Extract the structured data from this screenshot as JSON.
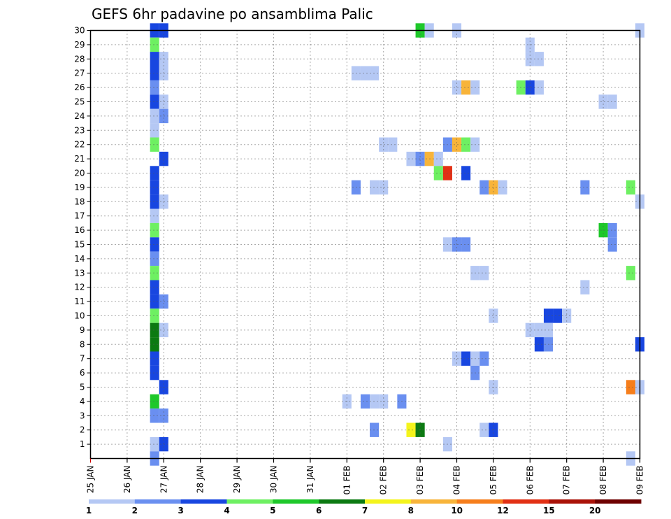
{
  "chart_data": {
    "type": "heatmap",
    "title": "GEFS 6hr padavine po ansamblima Palic",
    "x_tick_labels": [
      "25 JAN",
      "26 JAN",
      "27 JAN",
      "28 JAN",
      "29 JAN",
      "30 JAN",
      "31 JAN",
      "01 FEB",
      "02 FEB",
      "03 FEB",
      "04 FEB",
      "05 FEB",
      "06 FEB",
      "07 FEB",
      "08 FEB",
      "09 FEB"
    ],
    "y_tick_labels": [
      "1",
      "2",
      "3",
      "4",
      "5",
      "6",
      "7",
      "8",
      "9",
      "10",
      "11",
      "12",
      "13",
      "14",
      "15",
      "16",
      "17",
      "18",
      "19",
      "20",
      "21",
      "22",
      "23",
      "24",
      "25",
      "26",
      "27",
      "28",
      "29",
      "30"
    ],
    "x_range_days": [
      0,
      15
    ],
    "y_range_members": [
      0,
      30
    ],
    "grid": "dotted",
    "colorbar": {
      "placement": "bottom",
      "labels": [
        "1",
        "2",
        "3",
        "4",
        "5",
        "6",
        "7",
        "8",
        "10",
        "12",
        "15",
        "20"
      ],
      "colors": [
        "#b5c8f4",
        "#6a8ff0",
        "#1846e0",
        "#6ef062",
        "#1ec82a",
        "#0c7a12",
        "#f4f41c",
        "#f8b43a",
        "#f67e1c",
        "#e23014",
        "#aa1208",
        "#6e0000"
      ]
    },
    "cell_width_days": 0.25,
    "cells": [
      {
        "day": 1.75,
        "member": 30,
        "level": 3
      },
      {
        "day": 2.0,
        "member": 30,
        "level": 3
      },
      {
        "day": 1.75,
        "member": 29,
        "level": 4
      },
      {
        "day": 1.75,
        "member": 28,
        "level": 3
      },
      {
        "day": 2.0,
        "member": 28,
        "level": 1
      },
      {
        "day": 1.75,
        "member": 27,
        "level": 3
      },
      {
        "day": 2.0,
        "member": 27,
        "level": 1
      },
      {
        "day": 1.75,
        "member": 26,
        "level": 2
      },
      {
        "day": 1.75,
        "member": 25,
        "level": 3
      },
      {
        "day": 2.0,
        "member": 25,
        "level": 1
      },
      {
        "day": 1.75,
        "member": 24,
        "level": 1
      },
      {
        "day": 2.0,
        "member": 24,
        "level": 2
      },
      {
        "day": 1.75,
        "member": 23,
        "level": 1
      },
      {
        "day": 1.75,
        "member": 22,
        "level": 4
      },
      {
        "day": 2.0,
        "member": 21,
        "level": 3
      },
      {
        "day": 1.75,
        "member": 20,
        "level": 3
      },
      {
        "day": 1.75,
        "member": 19,
        "level": 3
      },
      {
        "day": 1.75,
        "member": 18,
        "level": 3
      },
      {
        "day": 2.0,
        "member": 18,
        "level": 1
      },
      {
        "day": 1.75,
        "member": 17,
        "level": 1
      },
      {
        "day": 1.75,
        "member": 16,
        "level": 4
      },
      {
        "day": 1.75,
        "member": 15,
        "level": 3
      },
      {
        "day": 1.75,
        "member": 14,
        "level": 2
      },
      {
        "day": 1.75,
        "member": 13,
        "level": 4
      },
      {
        "day": 1.75,
        "member": 12,
        "level": 3
      },
      {
        "day": 1.75,
        "member": 11,
        "level": 3
      },
      {
        "day": 2.0,
        "member": 11,
        "level": 2
      },
      {
        "day": 1.75,
        "member": 10,
        "level": 4
      },
      {
        "day": 1.75,
        "member": 9,
        "level": 6
      },
      {
        "day": 2.0,
        "member": 9,
        "level": 1
      },
      {
        "day": 1.75,
        "member": 8,
        "level": 6
      },
      {
        "day": 1.75,
        "member": 7,
        "level": 3
      },
      {
        "day": 1.75,
        "member": 6,
        "level": 3
      },
      {
        "day": 2.0,
        "member": 5,
        "level": 3
      },
      {
        "day": 1.75,
        "member": 4,
        "level": 5
      },
      {
        "day": 1.75,
        "member": 3,
        "level": 2
      },
      {
        "day": 2.0,
        "member": 3,
        "level": 2
      },
      {
        "day": 1.75,
        "member": 1,
        "level": 1
      },
      {
        "day": 2.0,
        "member": 1,
        "level": 3
      },
      {
        "day": 1.75,
        "member": 0,
        "level": 2
      },
      {
        "day": 9.0,
        "member": 30,
        "level": 5
      },
      {
        "day": 9.25,
        "member": 30,
        "level": 1
      },
      {
        "day": 10.0,
        "member": 30,
        "level": 1
      },
      {
        "day": 15.0,
        "member": 30,
        "level": 1
      },
      {
        "day": 12.0,
        "member": 28,
        "level": 1
      },
      {
        "day": 12.25,
        "member": 28,
        "level": 1
      },
      {
        "day": 12.0,
        "member": 29,
        "level": 1
      },
      {
        "day": 7.25,
        "member": 27,
        "level": 1
      },
      {
        "day": 7.5,
        "member": 27,
        "level": 1
      },
      {
        "day": 7.75,
        "member": 27,
        "level": 1
      },
      {
        "day": 10.0,
        "member": 26,
        "level": 1
      },
      {
        "day": 10.25,
        "member": 26,
        "level": 8
      },
      {
        "day": 10.5,
        "member": 26,
        "level": 1
      },
      {
        "day": 11.75,
        "member": 26,
        "level": 4
      },
      {
        "day": 12.0,
        "member": 26,
        "level": 3
      },
      {
        "day": 12.25,
        "member": 26,
        "level": 1
      },
      {
        "day": 14.0,
        "member": 25,
        "level": 1
      },
      {
        "day": 14.25,
        "member": 25,
        "level": 1
      },
      {
        "day": 8.0,
        "member": 22,
        "level": 1
      },
      {
        "day": 8.25,
        "member": 22,
        "level": 1
      },
      {
        "day": 9.75,
        "member": 22,
        "level": 2
      },
      {
        "day": 10.0,
        "member": 22,
        "level": 8
      },
      {
        "day": 10.25,
        "member": 22,
        "level": 4
      },
      {
        "day": 10.5,
        "member": 22,
        "level": 1
      },
      {
        "day": 8.75,
        "member": 21,
        "level": 1
      },
      {
        "day": 9.0,
        "member": 21,
        "level": 2
      },
      {
        "day": 9.25,
        "member": 21,
        "level": 8
      },
      {
        "day": 9.5,
        "member": 21,
        "level": 1
      },
      {
        "day": 9.5,
        "member": 20,
        "level": 4
      },
      {
        "day": 9.75,
        "member": 20,
        "level": 10
      },
      {
        "day": 10.25,
        "member": 20,
        "level": 3
      },
      {
        "day": 7.25,
        "member": 19,
        "level": 2
      },
      {
        "day": 7.75,
        "member": 19,
        "level": 1
      },
      {
        "day": 8.0,
        "member": 19,
        "level": 1
      },
      {
        "day": 10.75,
        "member": 19,
        "level": 2
      },
      {
        "day": 11.0,
        "member": 19,
        "level": 8
      },
      {
        "day": 11.25,
        "member": 19,
        "level": 1
      },
      {
        "day": 13.5,
        "member": 19,
        "level": 2
      },
      {
        "day": 14.75,
        "member": 19,
        "level": 4
      },
      {
        "day": 15.0,
        "member": 18,
        "level": 1
      },
      {
        "day": 14.0,
        "member": 16,
        "level": 5
      },
      {
        "day": 14.25,
        "member": 16,
        "level": 2
      },
      {
        "day": 14.25,
        "member": 15,
        "level": 2
      },
      {
        "day": 9.75,
        "member": 15,
        "level": 1
      },
      {
        "day": 10.0,
        "member": 15,
        "level": 2
      },
      {
        "day": 10.25,
        "member": 15,
        "level": 2
      },
      {
        "day": 10.5,
        "member": 13,
        "level": 1
      },
      {
        "day": 10.75,
        "member": 13,
        "level": 1
      },
      {
        "day": 14.75,
        "member": 13,
        "level": 4
      },
      {
        "day": 13.5,
        "member": 12,
        "level": 1
      },
      {
        "day": 11.0,
        "member": 10,
        "level": 1
      },
      {
        "day": 12.5,
        "member": 10,
        "level": 3
      },
      {
        "day": 12.75,
        "member": 10,
        "level": 3
      },
      {
        "day": 13.0,
        "member": 10,
        "level": 1
      },
      {
        "day": 12.0,
        "member": 9,
        "level": 1
      },
      {
        "day": 12.25,
        "member": 9,
        "level": 1
      },
      {
        "day": 12.5,
        "member": 9,
        "level": 1
      },
      {
        "day": 12.25,
        "member": 8,
        "level": 3
      },
      {
        "day": 12.5,
        "member": 8,
        "level": 2
      },
      {
        "day": 15.0,
        "member": 8,
        "level": 3
      },
      {
        "day": 10.0,
        "member": 7,
        "level": 1
      },
      {
        "day": 10.25,
        "member": 7,
        "level": 3
      },
      {
        "day": 10.5,
        "member": 7,
        "level": 1
      },
      {
        "day": 10.75,
        "member": 7,
        "level": 2
      },
      {
        "day": 10.5,
        "member": 6,
        "level": 2
      },
      {
        "day": 11.0,
        "member": 5,
        "level": 1
      },
      {
        "day": 14.75,
        "member": 5,
        "level": 9
      },
      {
        "day": 15.0,
        "member": 5,
        "level": 1
      },
      {
        "day": 7.0,
        "member": 4,
        "level": 1
      },
      {
        "day": 7.5,
        "member": 4,
        "level": 2
      },
      {
        "day": 7.75,
        "member": 4,
        "level": 1
      },
      {
        "day": 8.0,
        "member": 4,
        "level": 1
      },
      {
        "day": 8.5,
        "member": 4,
        "level": 2
      },
      {
        "day": 7.75,
        "member": 2,
        "level": 2
      },
      {
        "day": 8.75,
        "member": 2,
        "level": 7
      },
      {
        "day": 9.0,
        "member": 2,
        "level": 6
      },
      {
        "day": 10.75,
        "member": 2,
        "level": 1
      },
      {
        "day": 11.0,
        "member": 2,
        "level": 3
      },
      {
        "day": 9.75,
        "member": 1,
        "level": 1
      },
      {
        "day": 14.75,
        "member": 0,
        "level": 1
      }
    ]
  }
}
